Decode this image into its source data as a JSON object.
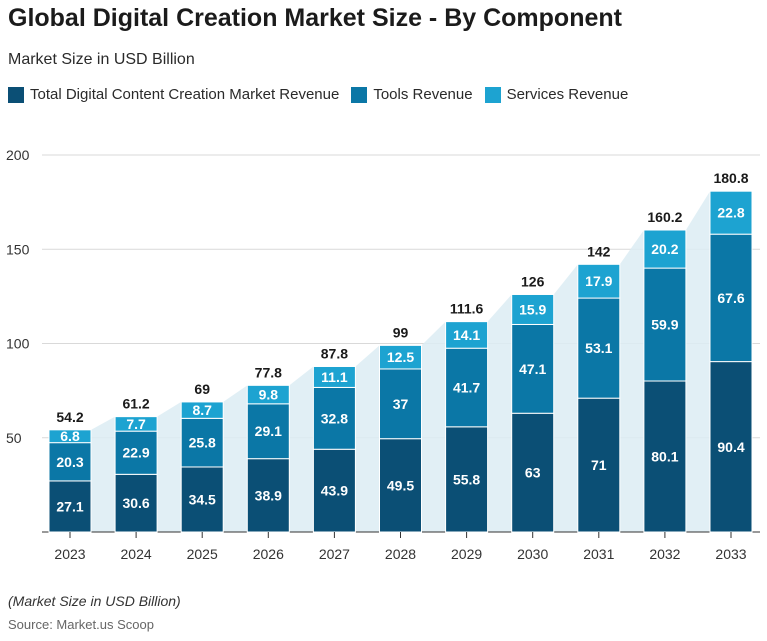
{
  "title": "Global Digital Creation Market Size - By Component",
  "subtitle": "Market Size in USD Billion",
  "footnote": "(Market Size in USD Billion)",
  "source": "Source: Market.us Scoop",
  "colors": {
    "total": "#0b4f75",
    "tools": "#0b77a6",
    "services": "#1da3d1",
    "area": "#dcecf3",
    "grid": "#d9d9d9"
  },
  "chart_data": {
    "type": "bar",
    "stacked": true,
    "categories": [
      "2023",
      "2024",
      "2025",
      "2026",
      "2027",
      "2028",
      "2029",
      "2030",
      "2031",
      "2032",
      "2033"
    ],
    "series": [
      {
        "name": "Total Digital Content Creation Market Revenue",
        "values": [
          27.1,
          30.6,
          34.5,
          38.9,
          43.9,
          49.5,
          55.8,
          63,
          71,
          80.1,
          90.4
        ]
      },
      {
        "name": "Tools Revenue",
        "values": [
          20.3,
          22.9,
          25.8,
          29.1,
          32.8,
          37,
          41.7,
          47.1,
          53.1,
          59.9,
          67.6
        ]
      },
      {
        "name": "Services Revenue",
        "values": [
          6.8,
          7.7,
          8.7,
          9.8,
          11.1,
          12.5,
          14.1,
          15.9,
          17.9,
          20.2,
          22.8
        ]
      }
    ],
    "totals": [
      "54.2",
      "61.2",
      "69",
      "77.8",
      "87.8",
      "99",
      "111.6",
      "126",
      "142",
      "160.2",
      "180.8"
    ],
    "y_ticks": [
      50,
      100,
      150,
      200
    ],
    "ylim": [
      0,
      200
    ],
    "grid": true,
    "legend": "top-left"
  }
}
